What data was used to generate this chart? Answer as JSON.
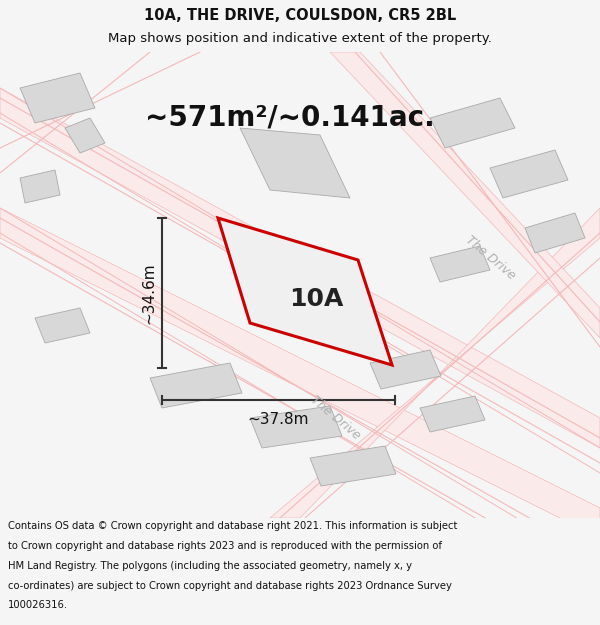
{
  "title_line1": "10A, THE DRIVE, COULSDON, CR5 2BL",
  "title_line2": "Map shows position and indicative extent of the property.",
  "area_text": "~571m²/~0.141ac.",
  "label_10A": "10A",
  "dim_width": "~37.8m",
  "dim_height": "~34.6m",
  "footer_lines": [
    "Contains OS data © Crown copyright and database right 2021. This information is subject",
    "to Crown copyright and database rights 2023 and is reproduced with the permission of",
    "HM Land Registry. The polygons (including the associated geometry, namely x, y",
    "co-ordinates) are subject to Crown copyright and database rights 2023 Ordnance Survey",
    "100026316."
  ],
  "bg_color": "#f5f5f5",
  "map_bg": "#ffffff",
  "plot_fill": "#f0f0f0",
  "plot_border": "#cc0000",
  "road_pink": "#f4b8b8",
  "road_pink_fill": "#faeaea",
  "building_fill": "#d8d8d8",
  "building_edge": "#aaaaaa",
  "dim_color": "#333333",
  "road_label_color": "#b0b0b0",
  "title_fontsize": 10.5,
  "subtitle_fontsize": 9.5,
  "area_fontsize": 20,
  "label_fontsize": 18,
  "dim_fontsize": 11,
  "road_label_fontsize": 9,
  "footer_fontsize": 7.2
}
